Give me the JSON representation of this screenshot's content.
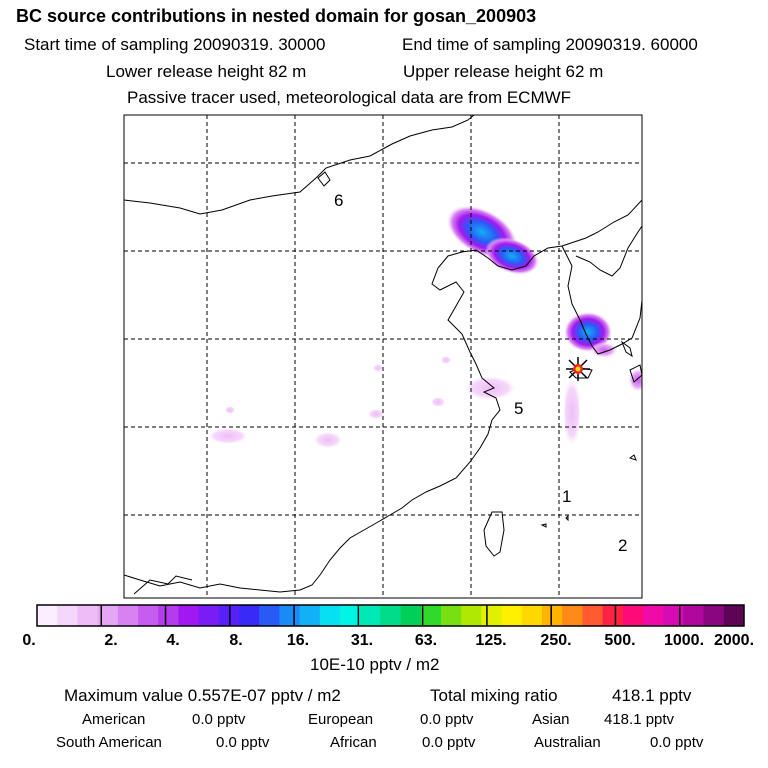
{
  "header": {
    "title": "BC  source contributions in nested domain for gosan_200903",
    "start_label": "Start time of sampling 20090319. 30000",
    "end_label": "End time of sampling 20090319. 60000",
    "lower_label": "Lower release height   82 m",
    "upper_label": "Upper release height   62 m",
    "note": "Passive tracer used, meteorological data are from ECMWF"
  },
  "map": {
    "region_labels": [
      "6",
      "5",
      "1",
      "2"
    ],
    "receptor": "gosan-site-marker"
  },
  "colorbar": {
    "colors": [
      "#fbeefe",
      "#f5d7fb",
      "#eebdf8",
      "#e6a6f6",
      "#d882f2",
      "#c65cf0",
      "#b43bee",
      "#a218f0",
      "#7a1cf6",
      "#5a20fa",
      "#3a2af8",
      "#2a5af6",
      "#1a8af6",
      "#12b0f4",
      "#06e0f0",
      "#00f6e4",
      "#00e8b4",
      "#00dc88",
      "#00d05a",
      "#30da2a",
      "#78e010",
      "#b0e804",
      "#e0f000",
      "#fff000",
      "#ffd800",
      "#ffb400",
      "#ff8a18",
      "#ff5a30",
      "#ff2244",
      "#ff0a78",
      "#f00aa8",
      "#d80ab4",
      "#b0089c",
      "#8a0680",
      "#5e0456"
    ],
    "tick_labels": [
      "0.",
      "2.",
      "4.",
      "8.",
      "16.",
      "31.",
      "63.",
      "125.",
      "250.",
      "500.",
      "1000.",
      "2000."
    ],
    "unit": "10E-10 pptv / m2"
  },
  "stats": {
    "max_label": "Maximum value  0.557E-07 pptv / m2",
    "total_label": "Total mixing ratio",
    "total_value": "418.1 pptv",
    "american_label": "American",
    "american_value": "0.0 pptv",
    "european_label": "European",
    "european_value": "0.0 pptv",
    "asian_label": "Asian",
    "asian_value": "418.1 pptv",
    "south_american_label": "South American",
    "south_american_value": "0.0 pptv",
    "african_label": "African",
    "african_value": "0.0 pptv",
    "australian_label": "Australian",
    "australian_value": "0.0 pptv"
  }
}
